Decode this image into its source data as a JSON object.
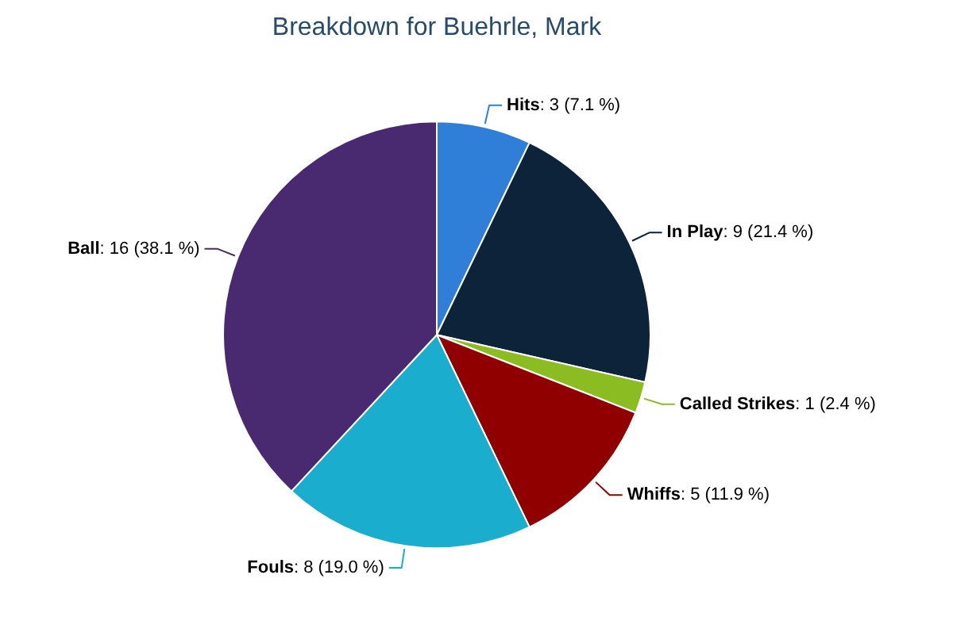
{
  "chart_data": {
    "type": "pie",
    "title": "Breakdown for Buehrle, Mark",
    "categories": [
      "Hits",
      "In Play",
      "Called Strikes",
      "Whiffs",
      "Fouls",
      "Ball"
    ],
    "values": [
      3,
      9,
      1,
      5,
      8,
      16
    ],
    "value_labels": [
      ": 3 (7.1 %)",
      ": 9 (21.4 %)",
      ": 1 (2.4 %)",
      ": 5 (11.9 %)",
      ": 8 (19.0 %)",
      ": 16 (38.1 %)"
    ],
    "colors": [
      "#2f7ed8",
      "#0d233a",
      "#8bbc21",
      "#910000",
      "#1aadce",
      "#492970"
    ],
    "legend": false
  }
}
